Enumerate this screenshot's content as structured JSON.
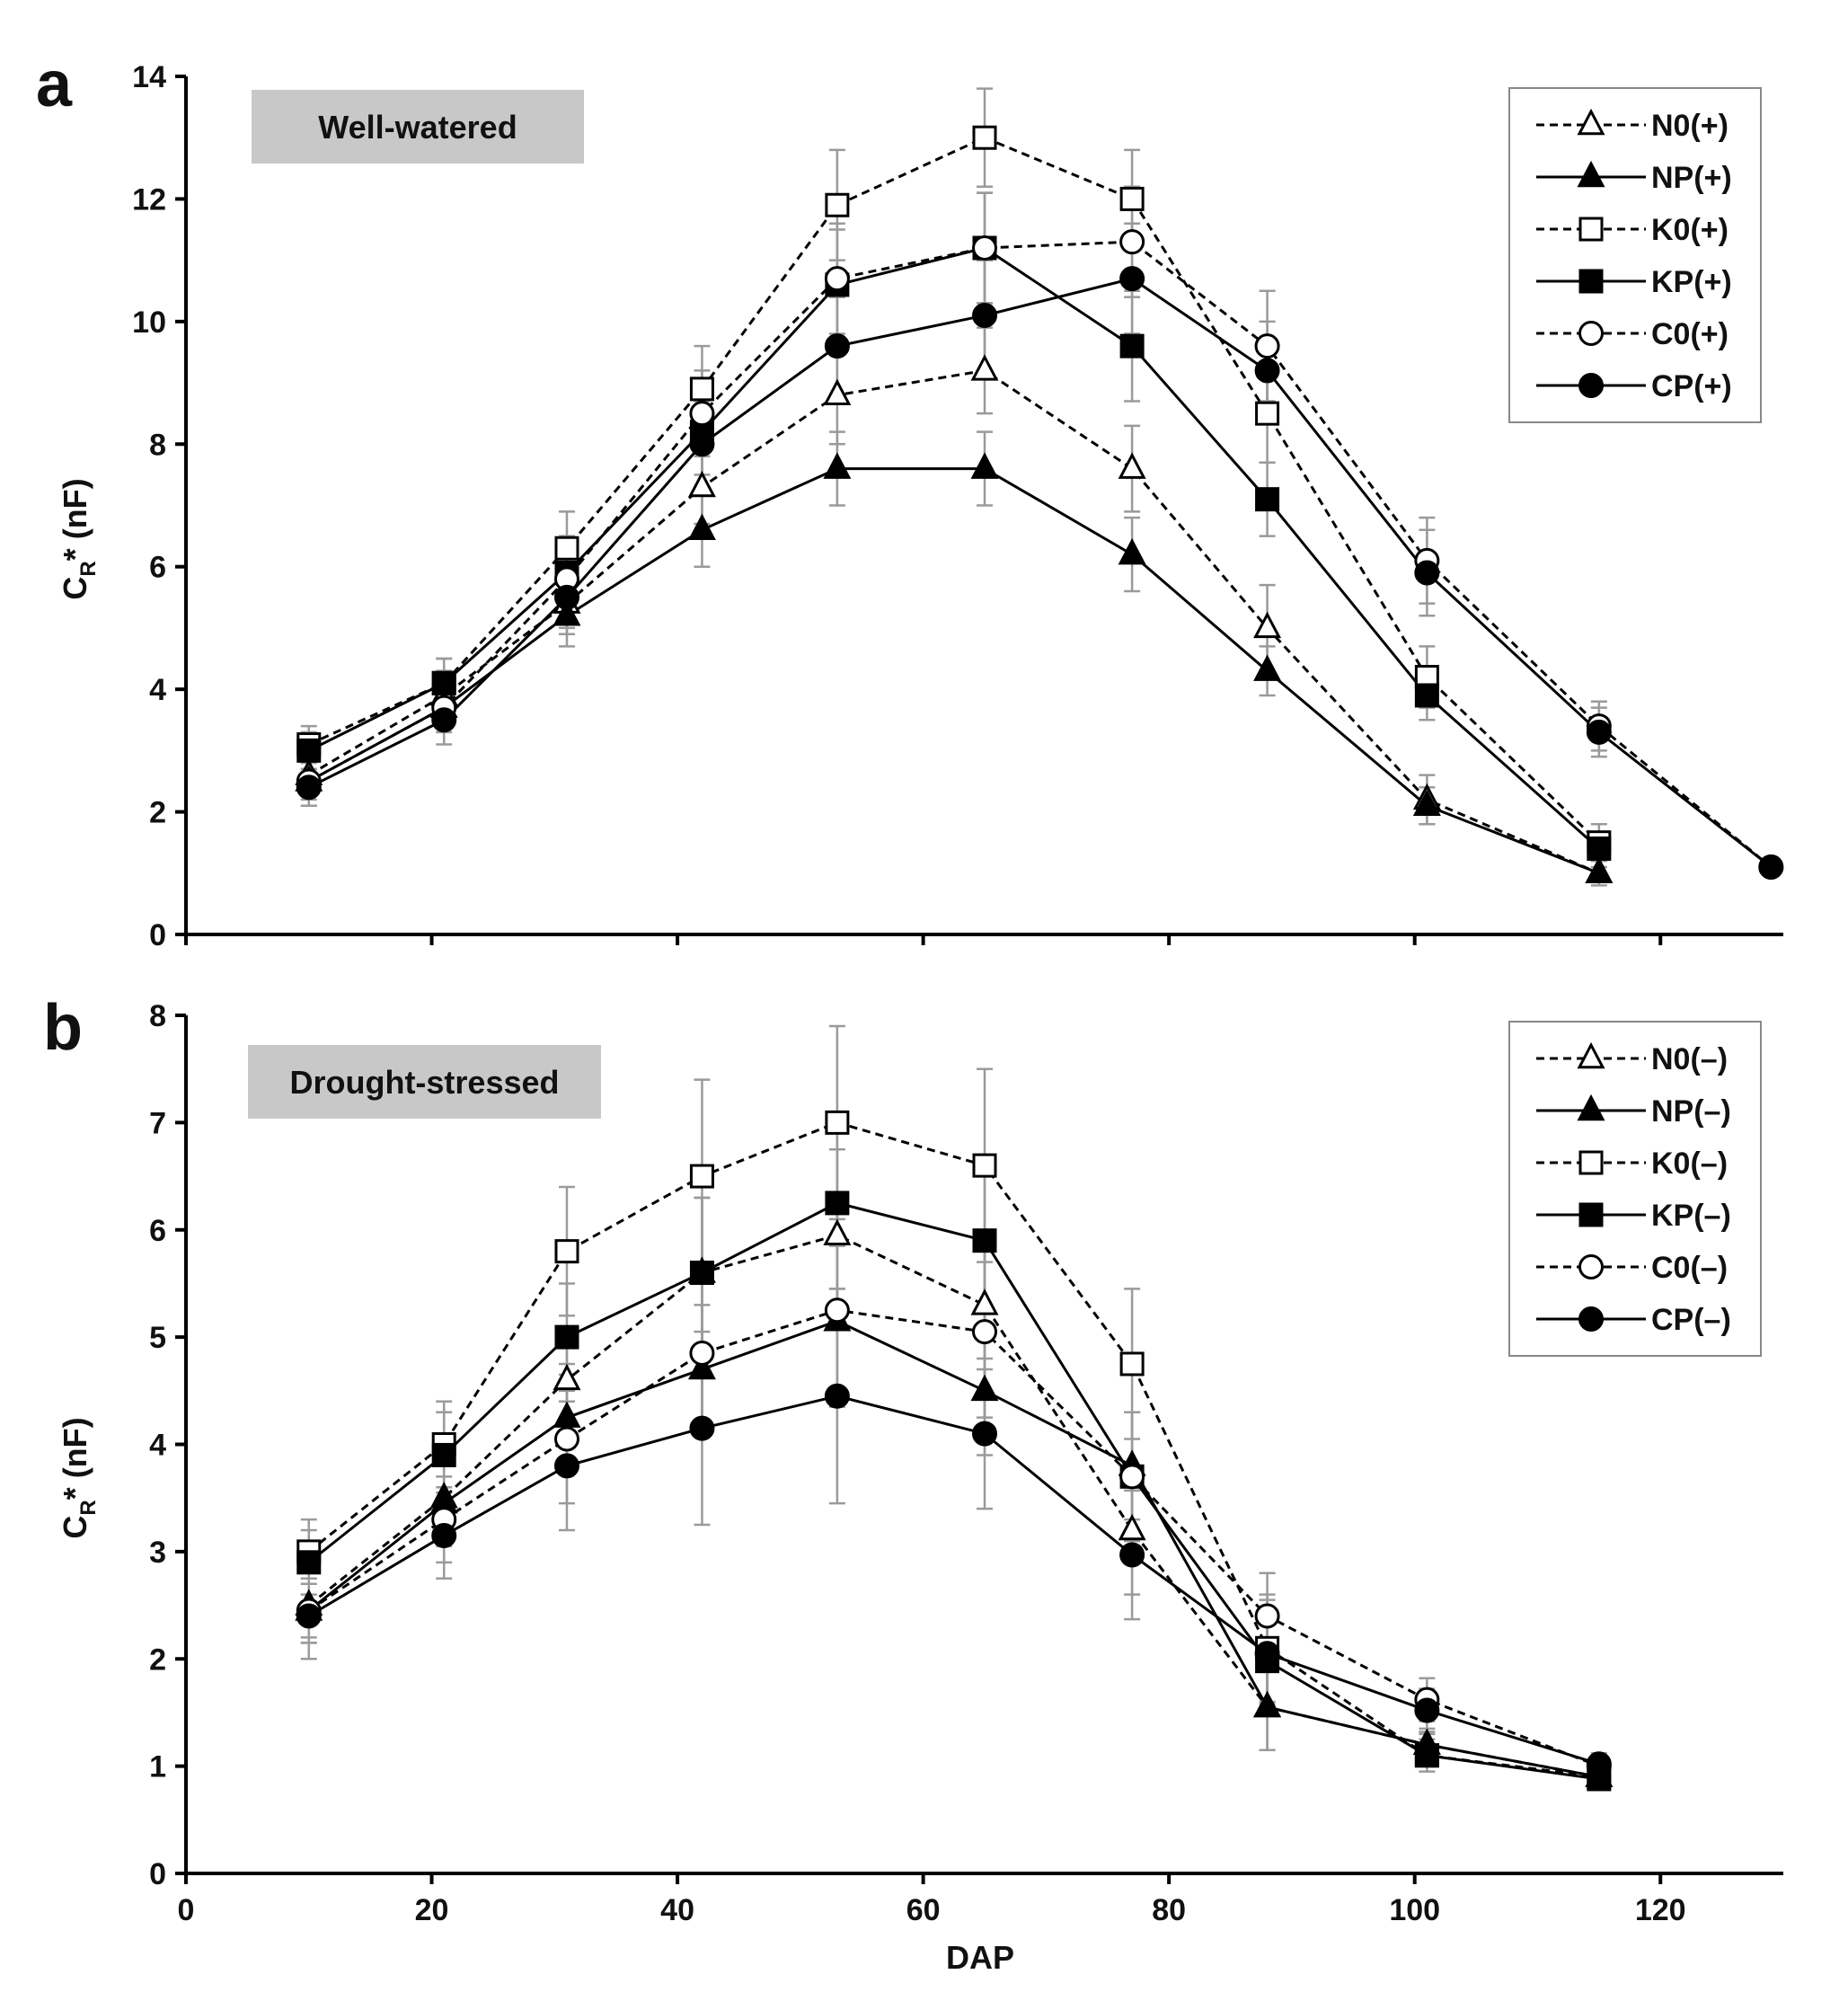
{
  "chart_data": [
    {
      "type": "line",
      "panel_letter": "a",
      "condition_label": "Well-watered",
      "xlabel": "",
      "ylabel_main": "C",
      "ylabel_sub": "R",
      "ylabel_rest": "* (nF)",
      "xlim": [
        0,
        130
      ],
      "ylim": [
        0,
        14
      ],
      "xticks": [
        0,
        20,
        40,
        60,
        80,
        100,
        120
      ],
      "xtick_labels": [],
      "yticks": [
        0,
        2,
        4,
        6,
        8,
        10,
        12,
        14
      ],
      "ytick_labels": [
        "0",
        "2",
        "4",
        "6",
        "8",
        "10",
        "12",
        "14"
      ],
      "legend_position": "top-right",
      "series": [
        {
          "name": "N0(+)",
          "marker": "triangle",
          "filled": false,
          "dashed": true,
          "x": [
            10,
            21,
            31,
            42,
            53,
            65,
            77,
            88,
            101,
            115
          ],
          "y": [
            2.6,
            3.9,
            5.4,
            7.3,
            8.8,
            9.2,
            7.6,
            5.0,
            2.2,
            1.0
          ],
          "err": [
            0.3,
            0.4,
            0.5,
            0.6,
            0.8,
            0.7,
            0.7,
            0.7,
            0.4,
            0.2
          ]
        },
        {
          "name": "NP(+)",
          "marker": "triangle",
          "filled": true,
          "dashed": false,
          "x": [
            10,
            21,
            31,
            42,
            53,
            65,
            77,
            88,
            101,
            115
          ],
          "y": [
            2.5,
            3.7,
            5.2,
            6.6,
            7.6,
            7.6,
            6.2,
            4.3,
            2.1,
            1.0
          ],
          "err": [
            0.3,
            0.3,
            0.5,
            0.6,
            0.6,
            0.6,
            0.6,
            0.4,
            0.3,
            0.1
          ]
        },
        {
          "name": "K0(+)",
          "marker": "square",
          "filled": false,
          "dashed": true,
          "x": [
            10,
            21,
            31,
            42,
            53,
            65,
            77,
            88,
            101,
            115
          ],
          "y": [
            3.1,
            4.1,
            6.3,
            8.9,
            11.9,
            13.0,
            12.0,
            8.5,
            4.2,
            1.5
          ],
          "err": [
            0.3,
            0.4,
            0.6,
            0.7,
            0.9,
            0.8,
            0.8,
            0.8,
            0.5,
            0.3
          ]
        },
        {
          "name": "KP(+)",
          "marker": "square",
          "filled": true,
          "dashed": false,
          "x": [
            10,
            21,
            31,
            42,
            53,
            65,
            77,
            88,
            101,
            115
          ],
          "y": [
            3.0,
            4.1,
            5.9,
            8.2,
            10.6,
            11.2,
            9.6,
            7.1,
            3.9,
            1.4
          ],
          "err": [
            0.3,
            0.4,
            0.6,
            0.7,
            0.9,
            0.9,
            0.9,
            0.6,
            0.4,
            0.2
          ]
        },
        {
          "name": "C0(+)",
          "marker": "circle",
          "filled": false,
          "dashed": true,
          "x": [
            10,
            21,
            31,
            42,
            53,
            65,
            77,
            88,
            101,
            115,
            129
          ],
          "y": [
            2.5,
            3.7,
            5.8,
            8.5,
            10.7,
            11.2,
            11.3,
            9.6,
            6.1,
            3.4,
            1.1
          ],
          "err": [
            0.4,
            0.4,
            0.5,
            0.7,
            0.9,
            0.9,
            0.9,
            0.9,
            0.7,
            0.4,
            0.1
          ]
        },
        {
          "name": "CP(+)",
          "marker": "circle",
          "filled": true,
          "dashed": false,
          "x": [
            10,
            21,
            31,
            42,
            53,
            65,
            77,
            88,
            101,
            115,
            129
          ],
          "y": [
            2.4,
            3.5,
            5.5,
            8.0,
            9.6,
            10.1,
            10.7,
            9.2,
            5.9,
            3.3,
            1.1
          ],
          "err": [
            0.3,
            0.4,
            0.5,
            0.7,
            0.8,
            0.9,
            0.9,
            0.8,
            0.7,
            0.4,
            0.1
          ]
        }
      ]
    },
    {
      "type": "line",
      "panel_letter": "b",
      "condition_label": "Drought-stressed",
      "xlabel": "DAP",
      "ylabel_main": "C",
      "ylabel_sub": "R",
      "ylabel_rest": "* (nF)",
      "xlim": [
        0,
        130
      ],
      "ylim": [
        0,
        8
      ],
      "xticks": [
        0,
        20,
        40,
        60,
        80,
        100,
        120
      ],
      "xtick_labels": [
        "0",
        "20",
        "40",
        "60",
        "80",
        "100",
        "120"
      ],
      "yticks": [
        0,
        1,
        2,
        3,
        4,
        5,
        6,
        7,
        8
      ],
      "ytick_labels": [
        "0",
        "1",
        "2",
        "3",
        "4",
        "5",
        "6",
        "7",
        "8"
      ],
      "legend_position": "top-right",
      "series": [
        {
          "name": "N0(–)",
          "marker": "triangle",
          "filled": false,
          "dashed": true,
          "x": [
            10,
            21,
            31,
            42,
            53,
            65,
            77,
            88,
            101,
            115
          ],
          "y": [
            2.5,
            3.5,
            4.6,
            5.6,
            5.95,
            5.3,
            3.2,
            1.55,
            1.2,
            0.9
          ],
          "err": [
            0.3,
            0.4,
            0.5,
            0.7,
            0.8,
            0.6,
            0.6,
            0.4,
            0.15,
            0.1
          ]
        },
        {
          "name": "NP(–)",
          "marker": "triangle",
          "filled": true,
          "dashed": false,
          "x": [
            10,
            21,
            31,
            42,
            53,
            65,
            77,
            88,
            101,
            115
          ],
          "y": [
            2.45,
            3.45,
            4.25,
            4.7,
            5.15,
            4.5,
            3.8,
            1.55,
            1.2,
            0.9
          ],
          "err": [
            0.3,
            0.4,
            0.5,
            0.6,
            0.7,
            0.6,
            0.5,
            0.4,
            0.1,
            0.1
          ]
        },
        {
          "name": "K0(–)",
          "marker": "square",
          "filled": false,
          "dashed": true,
          "x": [
            10,
            21,
            31,
            42,
            53,
            65,
            77,
            88,
            101,
            115
          ],
          "y": [
            3.0,
            4.0,
            5.8,
            6.5,
            7.0,
            6.6,
            4.75,
            2.1,
            1.1,
            0.9
          ],
          "err": [
            0.3,
            0.4,
            0.6,
            0.9,
            0.9,
            0.9,
            0.7,
            0.5,
            0.15,
            0.1
          ]
        },
        {
          "name": "KP(–)",
          "marker": "square",
          "filled": true,
          "dashed": false,
          "x": [
            10,
            21,
            31,
            42,
            53,
            65,
            77,
            88,
            101,
            115
          ],
          "y": [
            2.9,
            3.9,
            5.0,
            5.6,
            6.25,
            5.9,
            3.7,
            1.98,
            1.1,
            0.88
          ],
          "err": [
            0.3,
            0.4,
            0.5,
            0.7,
            0.8,
            0.8,
            0.6,
            0.4,
            0.1,
            0.1
          ]
        },
        {
          "name": "C0(–)",
          "marker": "circle",
          "filled": false,
          "dashed": true,
          "x": [
            10,
            21,
            31,
            42,
            53,
            65,
            77,
            88,
            101,
            115
          ],
          "y": [
            2.45,
            3.3,
            4.05,
            4.85,
            5.25,
            5.05,
            3.7,
            2.4,
            1.62,
            1.0
          ],
          "err": [
            0.3,
            0.4,
            0.6,
            0.7,
            0.9,
            0.8,
            0.6,
            0.4,
            0.2,
            0.1
          ]
        },
        {
          "name": "CP(–)",
          "marker": "circle",
          "filled": true,
          "dashed": false,
          "x": [
            10,
            21,
            31,
            42,
            53,
            65,
            77,
            88,
            101,
            115
          ],
          "y": [
            2.4,
            3.15,
            3.8,
            4.15,
            4.45,
            4.1,
            2.97,
            2.05,
            1.52,
            1.02
          ],
          "err": [
            0.4,
            0.4,
            0.6,
            0.9,
            1.0,
            0.7,
            0.6,
            0.5,
            0.2,
            0.1
          ]
        }
      ]
    }
  ]
}
